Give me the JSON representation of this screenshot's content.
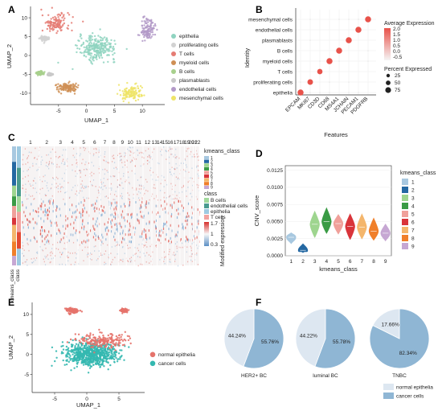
{
  "panel_labels": [
    "A",
    "B",
    "C",
    "D",
    "E",
    "F"
  ],
  "colors": {
    "epithelia": "#8fd3c0",
    "proliferating cells": "#d2d2d2",
    "T cells": "#e57c74",
    "myeloid cells": "#cf8f55",
    "B cells": "#a8d08d",
    "plasmablasts": "#c9c9c9",
    "endothelial cells": "#b39ac8",
    "mesenchymal cells": "#eee467",
    "normal epithelia": "#e5736b",
    "cancer cells": "#34b8b0",
    "pie_light": "#dde7f1",
    "pie_dark": "#8fb6d4",
    "kmeans": [
      "#a8c8e0",
      "#2468a2",
      "#9ed58f",
      "#3a9b45",
      "#f0a09a",
      "#d9343a",
      "#f4b66c",
      "#f07f2a",
      "#c6a7d3"
    ]
  },
  "chart_data": [
    {
      "panel": "A",
      "type": "scatter",
      "xlabel": "UMAP_1",
      "ylabel": "UMAP_2",
      "xticks": [
        "-5",
        "0",
        "5",
        "10"
      ],
      "yticks": [
        "-10",
        "-5",
        "0",
        "5",
        "10"
      ],
      "xlim": [
        -10,
        14
      ],
      "ylim": [
        -13,
        13
      ],
      "legend": [
        "epithelia",
        "proliferating cells",
        "T cells",
        "myeloid cells",
        "B cells",
        "plasmablasts",
        "endothelial cells",
        "mesenchymal cells"
      ],
      "clusters": [
        {
          "label": "T cells",
          "center": [
            -5.5,
            8.5
          ],
          "spread": [
            2.5,
            2.5
          ]
        },
        {
          "label": "epithelia",
          "center": [
            2,
            2
          ],
          "spread": [
            3.3,
            3.2
          ]
        },
        {
          "label": "proliferating cells",
          "center": [
            -7.5,
            4.5
          ],
          "spread": [
            0.8,
            0.6
          ]
        },
        {
          "label": "B cells",
          "center": [
            -8.3,
            -4.6
          ],
          "spread": [
            0.6,
            0.5
          ]
        },
        {
          "label": "plasmablasts",
          "center": [
            -6.5,
            -5
          ],
          "spread": [
            0.4,
            0.3
          ]
        },
        {
          "label": "myeloid cells",
          "center": [
            -3.5,
            -8.5
          ],
          "spread": [
            1.8,
            1.2
          ]
        },
        {
          "label": "mesenchymal cells",
          "center": [
            8,
            -10
          ],
          "spread": [
            2.2,
            1.8
          ]
        },
        {
          "label": "endothelial cells",
          "center": [
            11,
            7
          ],
          "spread": [
            1.2,
            2.8
          ]
        }
      ]
    },
    {
      "panel": "B",
      "type": "scatter",
      "xlabel": "Features",
      "ylabel": "Identity",
      "features": [
        "EPCAM",
        "MKI67",
        "CD3D",
        "CD68",
        "MS4A1",
        "JCHAIN",
        "PECAM1",
        "PDGFRB"
      ],
      "identities": [
        "epithelia",
        "proliferating cells",
        "T cells",
        "myeloid cells",
        "B cells",
        "plasmablasts",
        "endothelial cells",
        "mesenchymal cells"
      ],
      "size_legend_title": "Percent Expressed",
      "size_legend": [
        "25",
        "50",
        "75"
      ],
      "color_legend_title": "Average Expression",
      "color_legend": [
        "2.0",
        "1.5",
        "1.0",
        "0.5",
        "0.0",
        "-0.5"
      ],
      "dots": [
        {
          "feature": "EPCAM",
          "identity": "epithelia",
          "pct": 80,
          "avg": 2.0
        },
        {
          "feature": "MKI67",
          "identity": "proliferating cells",
          "pct": 70,
          "avg": 2.0
        },
        {
          "feature": "CD3D",
          "identity": "T cells",
          "pct": 65,
          "avg": 2.0
        },
        {
          "feature": "CD68",
          "identity": "myeloid cells",
          "pct": 80,
          "avg": 2.0
        },
        {
          "feature": "MS4A1",
          "identity": "B cells",
          "pct": 80,
          "avg": 2.0
        },
        {
          "feature": "JCHAIN",
          "identity": "plasmablasts",
          "pct": 80,
          "avg": 2.0
        },
        {
          "feature": "PECAM1",
          "identity": "endothelial cells",
          "pct": 80,
          "avg": 2.0
        },
        {
          "feature": "PDGFRB",
          "identity": "mesenchymal cells",
          "pct": 80,
          "avg": 2.0
        }
      ]
    },
    {
      "panel": "C",
      "type": "heatmap",
      "column_labels": [
        "1",
        "2",
        "3",
        "4",
        "5",
        "6",
        "7",
        "8",
        "9",
        "10",
        "11",
        "12",
        "13",
        "14",
        "15",
        "16",
        "17",
        "18",
        "19",
        "20",
        "21",
        "22"
      ],
      "legend_kmeans_title": "kmeans_class",
      "legend_kmeans": [
        "1",
        "2",
        "3",
        "4",
        "5",
        "6",
        "7",
        "8",
        "9"
      ],
      "legend_class_title": "class",
      "legend_class": [
        "B cells",
        "endothelial cells",
        "epithelia",
        "T cells"
      ],
      "scale_title": "Modified expression",
      "scale_ticks": [
        "1.7",
        "1",
        "0.3"
      ],
      "row_labels": [
        "kmeans_class",
        "class"
      ]
    },
    {
      "panel": "D",
      "type": "violin",
      "xlabel": "kmeans_class",
      "ylabel": "CNV_score",
      "categories": [
        "1",
        "2",
        "3",
        "4",
        "5",
        "6",
        "7",
        "8",
        "9"
      ],
      "yticks": [
        "0.0000",
        "0.0025",
        "0.0050",
        "0.0075",
        "0.0100",
        "0.0125"
      ],
      "ylim": [
        0,
        0.0125
      ],
      "legend_title": "kmeans_class",
      "series": [
        {
          "name": "1",
          "min": 0.0017,
          "median": 0.0027,
          "max": 0.0034
        },
        {
          "name": "2",
          "min": 0.0004,
          "median": 0.0008,
          "max": 0.0018
        },
        {
          "name": "3",
          "min": 0.0026,
          "median": 0.0046,
          "max": 0.0066
        },
        {
          "name": "4",
          "min": 0.0032,
          "median": 0.005,
          "max": 0.0071
        },
        {
          "name": "5",
          "min": 0.0031,
          "median": 0.0047,
          "max": 0.0061
        },
        {
          "name": "6",
          "min": 0.0023,
          "median": 0.0043,
          "max": 0.0062
        },
        {
          "name": "7",
          "min": 0.0024,
          "median": 0.0042,
          "max": 0.0062
        },
        {
          "name": "8",
          "min": 0.0022,
          "median": 0.0036,
          "max": 0.0056
        },
        {
          "name": "9",
          "min": 0.0021,
          "median": 0.0033,
          "max": 0.0047
        }
      ]
    },
    {
      "panel": "E",
      "type": "scatter",
      "xlabel": "UMAP_1",
      "ylabel": "UMAP_2",
      "xticks": [
        "-5",
        "0",
        "5"
      ],
      "yticks": [
        "-5",
        "0",
        "5",
        "10"
      ],
      "xlim": [
        -8.5,
        9
      ],
      "ylim": [
        -9.5,
        13
      ],
      "legend": [
        "normal epithelia",
        "cancer cells"
      ],
      "clusters": [
        {
          "label": "normal epithelia",
          "center": [
            -2.3,
            11
          ],
          "spread": [
            0.9,
            0.6
          ]
        },
        {
          "label": "normal epithelia",
          "center": [
            5.8,
            11
          ],
          "spread": [
            0.6,
            0.4
          ]
        },
        {
          "label": "cancer cells",
          "center": [
            0.5,
            0
          ],
          "spread": [
            4,
            3
          ]
        },
        {
          "label": "normal epithelia",
          "center": [
            2.5,
            3.5
          ],
          "spread": [
            3.5,
            1.8
          ]
        }
      ]
    },
    {
      "panel": "F",
      "type": "pie",
      "legend": [
        "normal epithelia",
        "cancer cells"
      ],
      "pies": [
        {
          "name": "HER2+ BC",
          "slices": [
            {
              "label": "normal epithelia",
              "value": 44.24,
              "text": "44.24%"
            },
            {
              "label": "cancer cells",
              "value": 55.76,
              "text": "55.76%"
            }
          ]
        },
        {
          "name": "luminal BC",
          "slices": [
            {
              "label": "normal epithelia",
              "value": 44.22,
              "text": "44.22%"
            },
            {
              "label": "cancer cells",
              "value": 55.78,
              "text": "55.78%"
            }
          ]
        },
        {
          "name": "TNBC",
          "slices": [
            {
              "label": "normal epithelia",
              "value": 17.66,
              "text": "17.66%"
            },
            {
              "label": "cancer cells",
              "value": 82.34,
              "text": "82.34%"
            }
          ]
        }
      ]
    }
  ]
}
